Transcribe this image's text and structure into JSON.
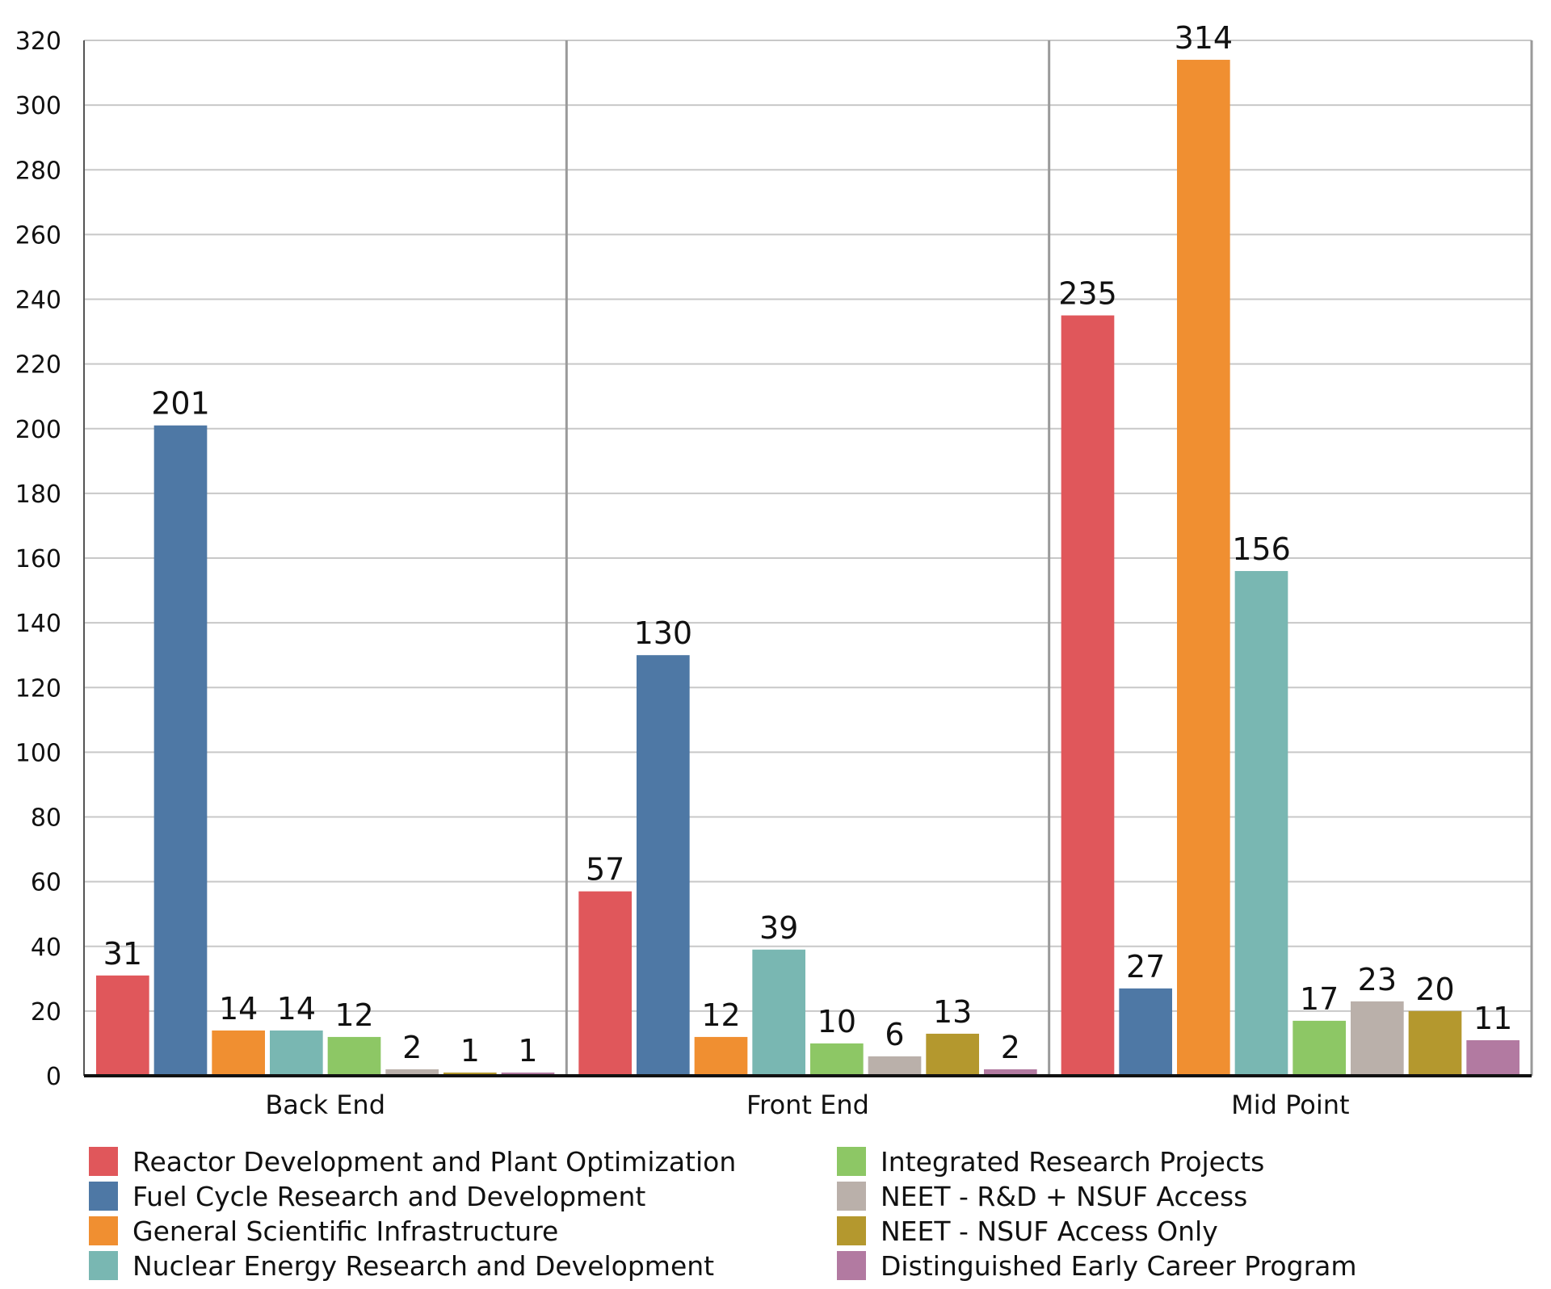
{
  "chart_data": {
    "type": "bar",
    "title": "",
    "xlabel": "",
    "ylabel": "",
    "ylim": [
      0,
      320
    ],
    "yticks": [
      0,
      20,
      40,
      60,
      80,
      100,
      120,
      140,
      160,
      180,
      200,
      220,
      240,
      260,
      280,
      300,
      320
    ],
    "grid": true,
    "legend_position": "bottom",
    "categories": [
      "Back End",
      "Front End",
      "Mid Point"
    ],
    "series": [
      {
        "name": "Reactor Development and Plant Optimization",
        "color": "#e0575b",
        "values": [
          31,
          57,
          235
        ]
      },
      {
        "name": "Fuel Cycle Research and Development",
        "color": "#4e78a5",
        "values": [
          201,
          130,
          27
        ]
      },
      {
        "name": "General Scientific Infrastructure",
        "color": "#f08f31",
        "values": [
          14,
          12,
          314
        ]
      },
      {
        "name": "Nuclear Energy Research and Development",
        "color": "#79b7b2",
        "values": [
          14,
          39,
          156
        ]
      },
      {
        "name": "Integrated Research Projects",
        "color": "#8dc765",
        "values": [
          12,
          10,
          17
        ]
      },
      {
        "name": "NEET - R&D + NSUF Access",
        "color": "#bab0aa",
        "values": [
          2,
          6,
          23
        ]
      },
      {
        "name": "NEET - NSUF Access Only",
        "color": "#b4982e",
        "values": [
          1,
          13,
          20
        ]
      },
      {
        "name": "Distinguished Early Career Program",
        "color": "#b27aa1",
        "values": [
          1,
          2,
          11
        ]
      }
    ]
  }
}
